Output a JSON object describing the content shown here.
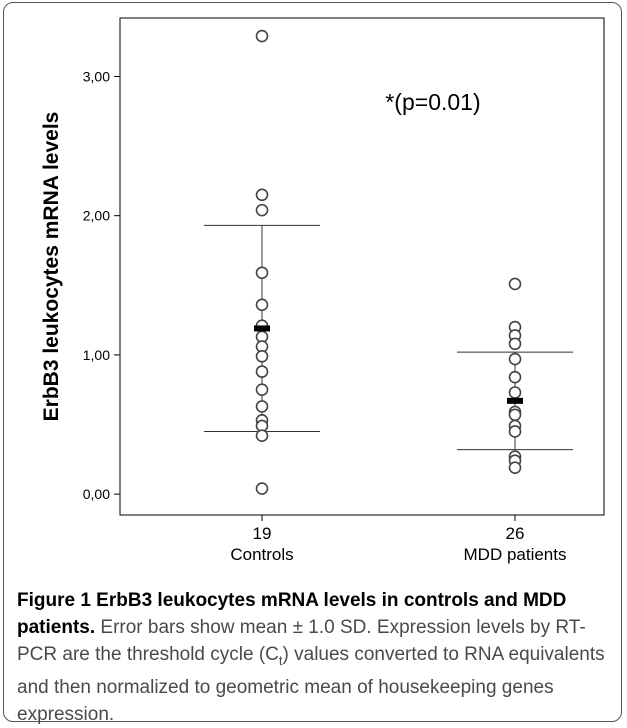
{
  "chart_data": {
    "type": "scatter",
    "ylabel": "ErbB3 leukocytes mRNA levels",
    "annotation": "*(p=0.01)",
    "ylim": [
      -0.15,
      3.42
    ],
    "yticks": [
      0.0,
      1.0,
      2.0,
      3.0
    ],
    "ytick_labels": [
      "0,00",
      "1,00",
      "2,00",
      "3,00"
    ],
    "groups": [
      {
        "n_label": "19",
        "name": "Controls",
        "mean": 1.19,
        "sd": 0.74,
        "points": [
          3.29,
          2.15,
          2.04,
          1.59,
          1.36,
          1.21,
          1.13,
          1.06,
          0.99,
          0.88,
          0.75,
          0.63,
          0.53,
          0.49,
          0.42,
          0.04
        ]
      },
      {
        "n_label": "26",
        "name": "MDD patients",
        "mean": 0.67,
        "sd": 0.35,
        "points": [
          1.51,
          1.2,
          1.14,
          1.08,
          0.97,
          0.84,
          0.73,
          0.59,
          0.57,
          0.49,
          0.45,
          0.27,
          0.24,
          0.19
        ]
      }
    ],
    "marker": "open-circle",
    "error_bars": "mean ± 1.0 SD",
    "grid": false,
    "legend": "none"
  },
  "caption": {
    "title": "Figure 1 ErbB3 leukocytes mRNA levels in controls and MDD patients.",
    "body": " Error bars show mean ± 1.0 SD. Expression levels by RT-PCR are the threshold cycle (C",
    "subscript": "t",
    "body_end": ") values converted to RNA equivalents and then normalized to geometric mean of housekeeping genes expression."
  },
  "colors": {
    "frame": "#555555",
    "axis": "#000000",
    "marker": "#444444",
    "mean_marker": "#000000",
    "caption_text": "#4a4a4a"
  }
}
